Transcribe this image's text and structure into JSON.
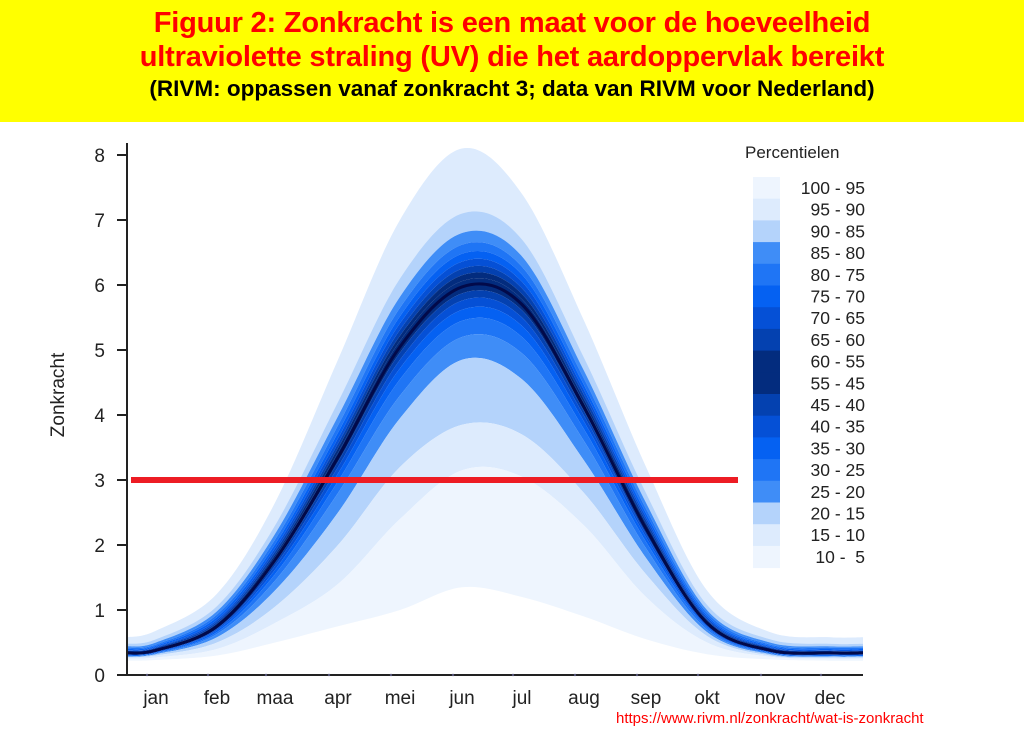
{
  "header": {
    "line1": "Figuur 2: Zonkracht is een maat voor de hoeveelheid",
    "line2": "ultraviolette straling (UV) die het aardoppervlak bereikt",
    "line3": "(RIVM: oppassen vanaf zonkracht 3; data van RIVM voor Nederland)"
  },
  "source_url": "https://www.rivm.nl/zonkracht/wat-is-zonkracht",
  "chart_data": {
    "type": "area",
    "title": "Figuur 2: Zonkracht is een maat voor de hoeveelheid ultraviolette straling (UV) die het aardoppervlak bereikt",
    "subtitle": "(RIVM: oppassen vanaf zonkracht 3; data van RIVM voor Nederland)",
    "xlabel": "",
    "ylabel": "Zonkracht",
    "ylim": [
      0,
      8
    ],
    "yticks": [
      0,
      1,
      2,
      3,
      4,
      5,
      6,
      7,
      8
    ],
    "categories": [
      "jan",
      "feb",
      "maa",
      "apr",
      "mei",
      "jun",
      "jul",
      "aug",
      "sep",
      "okt",
      "nov",
      "dec"
    ],
    "x": [
      "1 jan",
      "15 jan",
      "15 feb",
      "15 mrt",
      "15 apr",
      "15 mei",
      "15 jun",
      "15 jul",
      "15 aug",
      "15 sep",
      "15 okt",
      "15 nov",
      "15 dec",
      "31 dec"
    ],
    "grid": false,
    "legend": {
      "title": "Percentielen",
      "position": "right"
    },
    "threshold_line": {
      "value": 3,
      "color": "#ED1C24",
      "label": "oppassen vanaf zonkracht 3"
    },
    "series": [
      {
        "name": "p5",
        "values": [
          0.22,
          0.23,
          0.3,
          0.5,
          0.75,
          1.0,
          1.35,
          1.2,
          0.9,
          0.55,
          0.32,
          0.24,
          0.22,
          0.22
        ]
      },
      {
        "name": "p10",
        "values": [
          0.25,
          0.27,
          0.4,
          0.8,
          1.4,
          2.4,
          3.15,
          3.05,
          2.3,
          1.2,
          0.5,
          0.28,
          0.25,
          0.25
        ]
      },
      {
        "name": "p15",
        "values": [
          0.27,
          0.3,
          0.5,
          1.05,
          2.0,
          3.2,
          3.85,
          3.7,
          2.8,
          1.55,
          0.6,
          0.3,
          0.27,
          0.27
        ]
      },
      {
        "name": "p20",
        "values": [
          0.28,
          0.32,
          0.58,
          1.3,
          2.5,
          3.95,
          4.85,
          4.55,
          3.3,
          1.8,
          0.66,
          0.32,
          0.28,
          0.28
        ]
      },
      {
        "name": "p25",
        "values": [
          0.29,
          0.33,
          0.63,
          1.45,
          2.8,
          4.3,
          5.2,
          4.95,
          3.6,
          1.95,
          0.7,
          0.33,
          0.29,
          0.29
        ]
      },
      {
        "name": "p30",
        "values": [
          0.3,
          0.34,
          0.66,
          1.55,
          2.98,
          4.55,
          5.45,
          5.2,
          3.78,
          2.05,
          0.73,
          0.34,
          0.3,
          0.3
        ]
      },
      {
        "name": "p35",
        "values": [
          0.31,
          0.35,
          0.69,
          1.62,
          3.1,
          4.72,
          5.62,
          5.37,
          3.9,
          2.12,
          0.75,
          0.35,
          0.31,
          0.31
        ]
      },
      {
        "name": "p40",
        "values": [
          0.32,
          0.36,
          0.71,
          1.68,
          3.2,
          4.85,
          5.76,
          5.5,
          3.99,
          2.17,
          0.77,
          0.36,
          0.32,
          0.32
        ]
      },
      {
        "name": "p45",
        "values": [
          0.33,
          0.37,
          0.73,
          1.73,
          3.28,
          4.96,
          5.87,
          5.61,
          4.06,
          2.21,
          0.79,
          0.37,
          0.33,
          0.33
        ]
      },
      {
        "name": "p50",
        "values": [
          0.34,
          0.38,
          0.75,
          1.77,
          3.35,
          5.05,
          5.97,
          5.7,
          4.12,
          2.25,
          0.8,
          0.38,
          0.34,
          0.34
        ]
      },
      {
        "name": "p55",
        "values": [
          0.35,
          0.39,
          0.77,
          1.81,
          3.42,
          5.14,
          6.06,
          5.78,
          4.18,
          2.29,
          0.82,
          0.39,
          0.35,
          0.35
        ]
      },
      {
        "name": "p60",
        "values": [
          0.36,
          0.4,
          0.79,
          1.85,
          3.49,
          5.22,
          6.15,
          5.86,
          4.24,
          2.33,
          0.84,
          0.4,
          0.36,
          0.36
        ]
      },
      {
        "name": "p65",
        "values": [
          0.37,
          0.42,
          0.82,
          1.9,
          3.56,
          5.31,
          6.25,
          5.95,
          4.31,
          2.38,
          0.86,
          0.42,
          0.37,
          0.37
        ]
      },
      {
        "name": "p70",
        "values": [
          0.38,
          0.43,
          0.85,
          1.95,
          3.64,
          5.41,
          6.36,
          6.05,
          4.38,
          2.43,
          0.89,
          0.43,
          0.38,
          0.38
        ]
      },
      {
        "name": "p75",
        "values": [
          0.4,
          0.45,
          0.89,
          2.01,
          3.73,
          5.52,
          6.48,
          6.16,
          4.46,
          2.49,
          0.92,
          0.45,
          0.4,
          0.4
        ]
      },
      {
        "name": "p80",
        "values": [
          0.42,
          0.47,
          0.93,
          2.08,
          3.84,
          5.65,
          6.62,
          6.28,
          4.56,
          2.56,
          0.96,
          0.47,
          0.42,
          0.42
        ]
      },
      {
        "name": "p85",
        "values": [
          0.44,
          0.5,
          0.98,
          2.17,
          3.98,
          5.82,
          6.8,
          6.44,
          4.68,
          2.65,
          1.0,
          0.5,
          0.44,
          0.44
        ]
      },
      {
        "name": "p90",
        "values": [
          0.48,
          0.55,
          1.06,
          2.3,
          4.2,
          6.1,
          7.1,
          6.7,
          4.88,
          2.8,
          1.08,
          0.55,
          0.48,
          0.48
        ]
      },
      {
        "name": "p95",
        "values": [
          0.58,
          0.68,
          1.25,
          2.65,
          4.85,
          7.0,
          8.1,
          7.4,
          5.45,
          3.2,
          1.3,
          0.66,
          0.58,
          0.58
        ]
      }
    ],
    "bands": [
      {
        "label": "100 - 95",
        "lower": "p95",
        "upper": "p95",
        "color": "#EEF5FE"
      },
      {
        "label": "95 - 90",
        "lower": "p90",
        "upper": "p95",
        "color": "#DDEBFD"
      },
      {
        "label": "90 - 85",
        "lower": "p85",
        "upper": "p90",
        "color": "#B4D3FB"
      },
      {
        "label": "85 - 80",
        "lower": "p80",
        "upper": "p85",
        "color": "#3F8DF7"
      },
      {
        "label": "80 - 75",
        "lower": "p75",
        "upper": "p80",
        "color": "#1F75F5"
      },
      {
        "label": "75 - 70",
        "lower": "p70",
        "upper": "p75",
        "color": "#0561F2"
      },
      {
        "label": "70 - 65",
        "lower": "p65",
        "upper": "p70",
        "color": "#0550D6"
      },
      {
        "label": "65 - 60",
        "lower": "p60",
        "upper": "p65",
        "color": "#0441B0"
      },
      {
        "label": "60 - 55",
        "lower": "p55",
        "upper": "p60",
        "color": "#032C7E"
      },
      {
        "label": "55 - 45",
        "lower": "p45",
        "upper": "p55",
        "color": "#032C7E"
      },
      {
        "label": "45 - 40",
        "lower": "p40",
        "upper": "p45",
        "color": "#0441B0"
      },
      {
        "label": "40 - 35",
        "lower": "p35",
        "upper": "p40",
        "color": "#0550D6"
      },
      {
        "label": "35 - 30",
        "lower": "p30",
        "upper": "p35",
        "color": "#0561F2"
      },
      {
        "label": "30 - 25",
        "lower": "p25",
        "upper": "p30",
        "color": "#1F75F5"
      },
      {
        "label": "25 - 20",
        "lower": "p20",
        "upper": "p25",
        "color": "#3F8DF7"
      },
      {
        "label": "20 - 15",
        "lower": "p15",
        "upper": "p20",
        "color": "#B4D3FB"
      },
      {
        "label": "15 - 10",
        "lower": "p10",
        "upper": "p15",
        "color": "#DDEBFD"
      },
      {
        "label": "10 - 5",
        "lower": "p5",
        "upper": "p10",
        "color": "#EEF5FE"
      }
    ],
    "median_color": "#020A4A"
  }
}
